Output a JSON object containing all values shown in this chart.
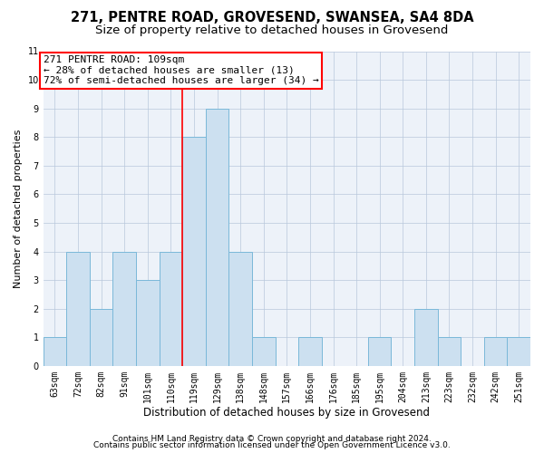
{
  "title1": "271, PENTRE ROAD, GROVESEND, SWANSEA, SA4 8DA",
  "title2": "Size of property relative to detached houses in Grovesend",
  "xlabel": "Distribution of detached houses by size in Grovesend",
  "ylabel": "Number of detached properties",
  "categories": [
    "63sqm",
    "72sqm",
    "82sqm",
    "91sqm",
    "101sqm",
    "110sqm",
    "119sqm",
    "129sqm",
    "138sqm",
    "148sqm",
    "157sqm",
    "166sqm",
    "176sqm",
    "185sqm",
    "195sqm",
    "204sqm",
    "213sqm",
    "223sqm",
    "232sqm",
    "242sqm",
    "251sqm"
  ],
  "values": [
    1,
    4,
    2,
    4,
    3,
    4,
    8,
    9,
    4,
    1,
    0,
    1,
    0,
    0,
    1,
    0,
    2,
    1,
    0,
    1,
    1
  ],
  "bar_color": "#cce0f0",
  "bar_edge_color": "#7ab8d9",
  "vline_x_index": 5.5,
  "annotation_line1": "271 PENTRE ROAD: 109sqm",
  "annotation_line2": "← 28% of detached houses are smaller (13)",
  "annotation_line3": "72% of semi-detached houses are larger (34) →",
  "annotation_box_color": "white",
  "annotation_box_edgecolor": "red",
  "vline_color": "red",
  "ylim": [
    0,
    11
  ],
  "yticks": [
    0,
    1,
    2,
    3,
    4,
    5,
    6,
    7,
    8,
    9,
    10,
    11
  ],
  "footer1": "Contains HM Land Registry data © Crown copyright and database right 2024.",
  "footer2": "Contains public sector information licensed under the Open Government Licence v3.0.",
  "bg_color": "#edf2f9",
  "grid_color": "#b8c8dc",
  "title1_fontsize": 10.5,
  "title2_fontsize": 9.5,
  "xlabel_fontsize": 8.5,
  "ylabel_fontsize": 8,
  "tick_fontsize": 7,
  "annotation_fontsize": 8,
  "footer_fontsize": 6.5
}
